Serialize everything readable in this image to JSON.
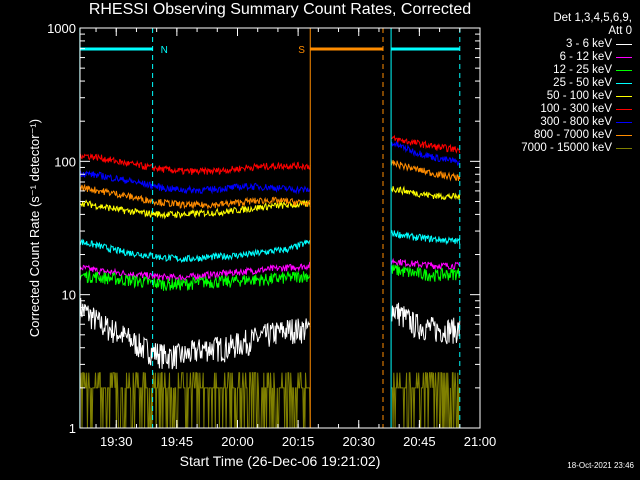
{
  "chart_data": {
    "type": "line",
    "title": "RHESSI Observing Summary Count Rates, Corrected",
    "xlabel": "Start Time (26-Dec-06 19:21:02)",
    "ylabel": "Corrected Count Rate (s⁻¹ detector⁻¹)",
    "yscale": "log",
    "ylim": [
      1,
      1000
    ],
    "xlim": [
      "19:21:02",
      "21:00:00"
    ],
    "x_ticks": [
      "19:30",
      "19:45",
      "20:00",
      "20:15",
      "20:30",
      "20:45",
      "21:00"
    ],
    "y_ticks": [
      "1",
      "10",
      "100",
      "1000"
    ],
    "grid": false,
    "legend_position": "top-right (outside plot)",
    "legend_header": [
      "Det 1,3,4,5,6,9,",
      "Att 0"
    ],
    "flag_labels": {
      "night": "N",
      "saa": "S"
    },
    "flags": [
      {
        "name": "N",
        "start": "19:21",
        "end": "19:39",
        "color": "#00ffff"
      },
      {
        "name": "S",
        "start": "20:18",
        "end": "20:36",
        "color": "#ff8c00"
      },
      {
        "name": "N",
        "start": "20:38",
        "end": "20:55",
        "color": "#00ffff"
      }
    ],
    "data_gap": {
      "start": "20:18",
      "end": "20:38"
    },
    "series": [
      {
        "name": "3 - 6 keV",
        "color": "#ffffff",
        "values_before_gap": [
          8,
          6,
          5,
          4,
          3.5,
          3.5,
          4,
          4,
          4.5,
          5,
          5.5,
          5.5
        ],
        "values_after_gap": [
          8,
          6,
          5.5,
          5.5
        ]
      },
      {
        "name": "6 - 12 keV",
        "color": "#ff00ff",
        "values_before_gap": [
          16,
          15,
          14.5,
          14,
          13.5,
          13.5,
          14,
          14.5,
          15,
          15.5,
          16,
          16.5
        ],
        "values_after_gap": [
          18,
          17,
          16.5,
          16.5
        ]
      },
      {
        "name": "12 - 25 keV",
        "color": "#00ff00",
        "values_before_gap": [
          14,
          13.5,
          13,
          12.5,
          12,
          12,
          12.5,
          12.5,
          13,
          13,
          13.5,
          14
        ],
        "values_after_gap": [
          15.5,
          14.5,
          14,
          14.5
        ]
      },
      {
        "name": "25 - 50 keV",
        "color": "#00ffff",
        "values_before_gap": [
          25,
          23,
          21,
          20,
          19,
          18.5,
          19,
          19.5,
          20,
          21,
          22,
          25
        ],
        "values_after_gap": [
          29,
          27,
          26,
          25
        ]
      },
      {
        "name": "50 - 100 keV",
        "color": "#ffff00",
        "values_before_gap": [
          49,
          46,
          43,
          41,
          40,
          40,
          41,
          42,
          44,
          46,
          47,
          48
        ],
        "values_after_gap": [
          63,
          58,
          55,
          54
        ]
      },
      {
        "name": "100 - 300 keV",
        "color": "#ff0000",
        "values_before_gap": [
          112,
          106,
          98,
          92,
          87,
          84,
          84,
          86,
          90,
          92,
          93,
          92
        ],
        "values_after_gap": [
          148,
          138,
          128,
          122
        ]
      },
      {
        "name": "300 - 800 keV",
        "color": "#0000ff",
        "values_before_gap": [
          82,
          78,
          73,
          68,
          63,
          61,
          61,
          63,
          65,
          64,
          62,
          61
        ],
        "values_after_gap": [
          138,
          118,
          106,
          98
        ]
      },
      {
        "name": "800 - 7000 keV",
        "color": "#ff8c00",
        "values_before_gap": [
          64,
          60,
          56,
          52,
          49,
          47,
          47,
          48,
          50,
          51,
          50,
          48
        ],
        "values_after_gap": [
          98,
          88,
          80,
          75
        ]
      },
      {
        "name": "7000 - 15000 keV",
        "color": "#808000",
        "values_before_gap": [
          2,
          2,
          2,
          1.6,
          1.8,
          1.9,
          2,
          2,
          2,
          2,
          2,
          2
        ],
        "values_after_gap": [
          2,
          2,
          2,
          2
        ]
      }
    ],
    "footer_timestamp": "18-Oct-2021 23:46"
  }
}
